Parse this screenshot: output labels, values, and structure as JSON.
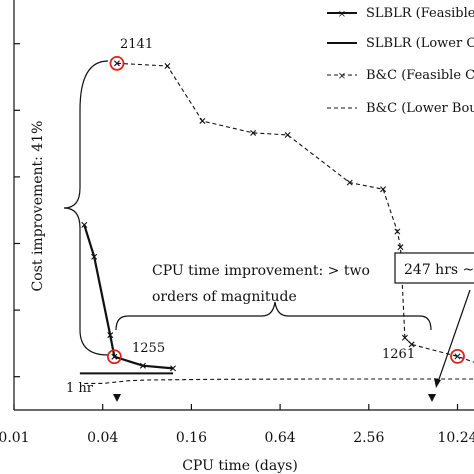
{
  "chart_data": {
    "type": "line",
    "xlabel": "CPU time (days)",
    "ylabel": "",
    "x_scale": "log2",
    "xlim": [
      0.01,
      20
    ],
    "x_ticks": [
      0.01,
      0.04,
      0.16,
      0.64,
      2.56,
      10.24
    ],
    "x_tick_labels": [
      "0.01",
      "0.04",
      "0.16",
      "0.64",
      "2.56",
      "10.24"
    ],
    "ylim": [
      1100,
      2250
    ],
    "y_ticks": [
      1200,
      1400,
      1600,
      1800,
      2000,
      2200
    ],
    "grid": false,
    "legend_position": "top-right",
    "series": [
      {
        "name": "SLBLR (Feasible C",
        "style": "solid-x",
        "x": [
          0.03,
          0.035,
          0.045,
          0.048,
          0.075,
          0.12
        ],
        "y": [
          1656,
          1560,
          1325,
          1260,
          1233,
          1225
        ]
      },
      {
        "name": "SLBLR (Lower Co",
        "style": "solid",
        "x": [
          0.028,
          0.12
        ],
        "y": [
          1210,
          1210
        ]
      },
      {
        "name": "B&C (Feasible Co",
        "style": "dashed-x",
        "x": [
          0.05,
          0.11,
          0.19,
          0.42,
          0.72,
          1.9,
          3.2,
          4.0,
          4.2,
          4.5,
          5.0,
          10.24,
          14,
          20
        ],
        "y": [
          2141,
          2133,
          1968,
          1932,
          1926,
          1783,
          1763,
          1636,
          1589,
          1317,
          1297,
          1261,
          1240,
          1240
        ]
      },
      {
        "name": "B&C (Lower Boun",
        "style": "dashed",
        "x": [
          0.03,
          0.04,
          0.05,
          0.06,
          0.08,
          0.2,
          1,
          5,
          10.24,
          20
        ],
        "y": [
          1180,
          1180,
          1184,
          1188,
          1190,
          1192,
          1193,
          1193,
          1193,
          1193
        ]
      }
    ],
    "annotations": {
      "top_value": "2141",
      "slblr_value": "1255",
      "bc_value": "1261",
      "one_hour": "1 hr",
      "cost_improvement": "Cost improvement: 41%",
      "cpu_improvement_line1": "CPU time improvement: > two",
      "cpu_improvement_line2": "orders of magnitude",
      "hours_box": "247 hrs ~ 1"
    },
    "colors": {
      "line": "#111111",
      "marker_circle": "#e0211b"
    }
  }
}
